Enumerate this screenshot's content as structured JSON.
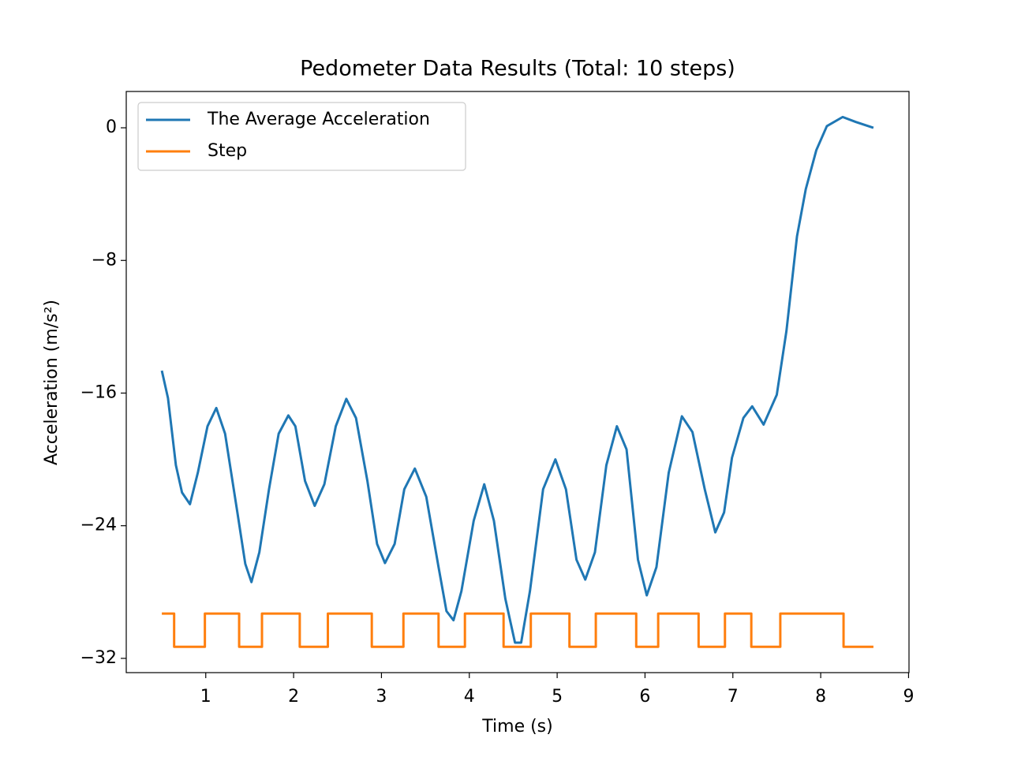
{
  "chart_data": {
    "type": "line",
    "title": "Pedometer Data Results (Total: 10 steps)",
    "x_label": "Time (s)",
    "y_label": "Acceleration (m/s²)",
    "xlim": [
      0.095,
      9.005
    ],
    "xticks": [
      1,
      2,
      3,
      4,
      5,
      6,
      7,
      8,
      9
    ],
    "ylim": [
      -32.86,
      2.19
    ],
    "yticks": [
      {
        "value": 0,
        "label": "0"
      },
      {
        "value": -8,
        "label": "−8"
      },
      {
        "value": -16,
        "label": "−16"
      },
      {
        "value": -24,
        "label": "−24"
      },
      {
        "value": -32,
        "label": "−32"
      }
    ],
    "legend": "upper left",
    "series": [
      {
        "name": "The Average Acceleration",
        "color": "#1f77b4",
        "x": [
          0.5,
          0.57,
          0.66,
          0.73,
          0.82,
          0.91,
          1.02,
          1.12,
          1.22,
          1.36,
          1.45,
          1.52,
          1.61,
          1.72,
          1.83,
          1.94,
          2.02,
          2.13,
          2.24,
          2.35,
          2.48,
          2.6,
          2.71,
          2.84,
          2.95,
          3.04,
          3.15,
          3.26,
          3.38,
          3.51,
          3.65,
          3.74,
          3.82,
          3.91,
          4.05,
          4.17,
          4.28,
          4.41,
          4.52,
          4.59,
          4.69,
          4.84,
          4.98,
          5.1,
          5.22,
          5.32,
          5.43,
          5.56,
          5.68,
          5.79,
          5.92,
          6.02,
          6.13,
          6.27,
          6.42,
          6.54,
          6.68,
          6.8,
          6.9,
          6.99,
          7.12,
          7.22,
          7.35,
          7.5,
          7.61,
          7.73,
          7.83,
          7.95,
          8.07,
          8.25,
          8.4,
          8.6
        ],
        "values": [
          -14.65,
          -16.3,
          -20.35,
          -22.0,
          -22.7,
          -20.8,
          -18.0,
          -16.9,
          -18.45,
          -23.2,
          -26.3,
          -27.4,
          -25.6,
          -21.8,
          -18.45,
          -17.35,
          -18.0,
          -21.3,
          -22.8,
          -21.5,
          -18.0,
          -16.35,
          -17.5,
          -21.3,
          -25.1,
          -26.25,
          -25.1,
          -21.8,
          -20.55,
          -22.25,
          -26.5,
          -29.15,
          -29.7,
          -27.95,
          -23.7,
          -21.5,
          -23.7,
          -28.4,
          -31.05,
          -31.05,
          -27.95,
          -21.8,
          -20.0,
          -21.8,
          -26.05,
          -27.25,
          -25.6,
          -20.35,
          -18.0,
          -19.4,
          -26.05,
          -28.2,
          -26.5,
          -20.8,
          -17.4,
          -18.35,
          -21.8,
          -24.4,
          -23.2,
          -19.9,
          -17.5,
          -16.8,
          -17.9,
          -16.1,
          -12.25,
          -6.55,
          -3.7,
          -1.35,
          0.1,
          0.65,
          0.35,
          0.0
        ]
      },
      {
        "name": "Step",
        "color": "#ff7f0e",
        "x": [
          0.5,
          0.64,
          0.64,
          0.99,
          0.99,
          1.38,
          1.38,
          1.64,
          1.64,
          2.07,
          2.07,
          2.39,
          2.39,
          2.89,
          2.89,
          3.25,
          3.25,
          3.65,
          3.65,
          3.95,
          3.95,
          4.39,
          4.39,
          4.7,
          4.7,
          5.14,
          5.14,
          5.44,
          5.44,
          5.9,
          5.9,
          6.15,
          6.15,
          6.61,
          6.61,
          6.91,
          6.91,
          7.21,
          7.21,
          7.54,
          7.54,
          8.26,
          8.26,
          8.6
        ],
        "values": [
          -29.3,
          -29.3,
          -31.3,
          -31.3,
          -29.3,
          -29.3,
          -31.3,
          -31.3,
          -29.3,
          -29.3,
          -31.3,
          -31.3,
          -29.3,
          -29.3,
          -31.3,
          -31.3,
          -29.3,
          -29.3,
          -31.3,
          -31.3,
          -29.3,
          -29.3,
          -31.3,
          -31.3,
          -29.3,
          -29.3,
          -31.3,
          -31.3,
          -29.3,
          -29.3,
          -31.3,
          -31.3,
          -29.3,
          -29.3,
          -31.3,
          -31.3,
          -29.3,
          -29.3,
          -31.3,
          -31.3,
          -29.3,
          -29.3,
          -31.3,
          -31.3
        ]
      }
    ]
  }
}
